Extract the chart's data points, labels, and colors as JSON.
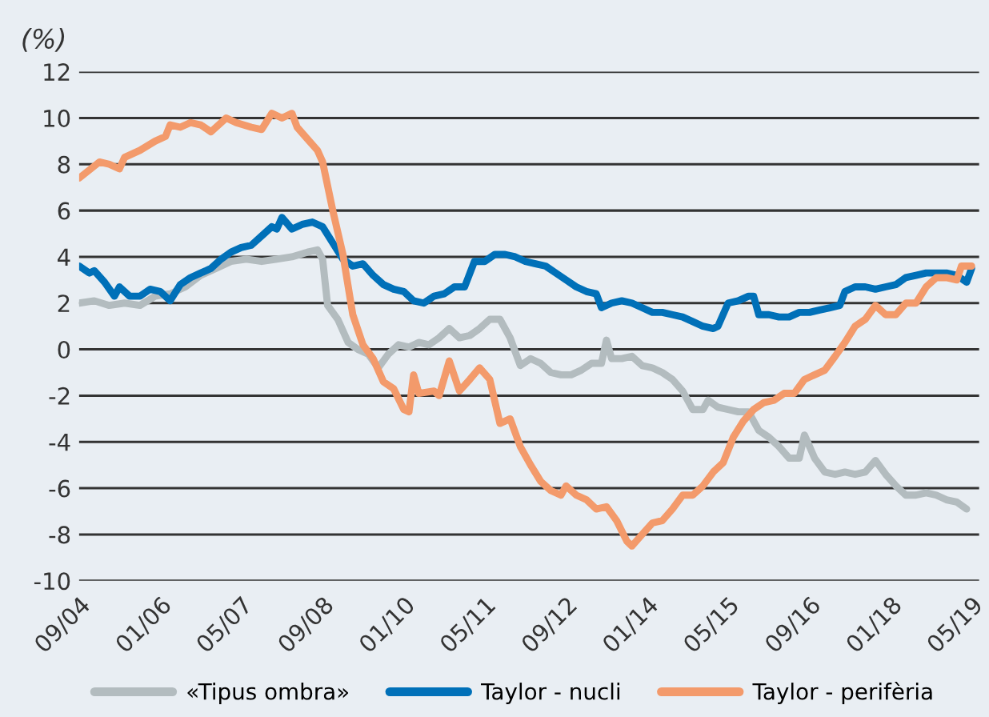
{
  "chart_data": {
    "type": "line",
    "ylabel": "(%)",
    "ylim": [
      -10,
      12
    ],
    "yticks": [
      -10,
      -8,
      -6,
      -4,
      -2,
      0,
      2,
      4,
      6,
      8,
      10,
      12
    ],
    "xlim": [
      "2004-09",
      "2019-06-15"
    ],
    "xticks": [
      {
        "value": "2004-09",
        "label": "09/04"
      },
      {
        "value": "2006-01",
        "label": "01/06"
      },
      {
        "value": "2007-05",
        "label": "05/07"
      },
      {
        "value": "2008-09",
        "label": "09/08"
      },
      {
        "value": "2010-01",
        "label": "01/10"
      },
      {
        "value": "2011-05",
        "label": "05/11"
      },
      {
        "value": "2012-09",
        "label": "09/12"
      },
      {
        "value": "2014-01",
        "label": "01/14"
      },
      {
        "value": "2015-05",
        "label": "05/15"
      },
      {
        "value": "2016-09",
        "label": "09/16"
      },
      {
        "value": "2018-01",
        "label": "01/18"
      },
      {
        "value": "2019-05",
        "label": "05/19"
      }
    ],
    "grid": "y",
    "legend": "bottom",
    "line_style": "solid",
    "marker": "none",
    "series": [
      {
        "name": "«Tipus ombra»",
        "color": "#b3bcbf",
        "x": [
          "2004-09",
          "2004-12",
          "2005-03",
          "2005-06",
          "2005-09",
          "2005-12",
          "2006-03",
          "2006-06",
          "2006-09",
          "2006-12",
          "2007-03",
          "2007-06",
          "2007-09",
          "2007-12",
          "2008-03",
          "2008-06",
          "2008-08",
          "2008-09",
          "2008-10",
          "2008-12",
          "2009-02",
          "2009-04",
          "2009-06",
          "2009-08",
          "2009-10",
          "2009-12",
          "2010-02",
          "2010-04",
          "2010-06",
          "2010-08",
          "2010-10",
          "2010-12",
          "2011-02",
          "2011-04",
          "2011-06",
          "2011-08",
          "2011-10",
          "2011-12",
          "2012-02",
          "2012-04",
          "2012-06",
          "2012-08",
          "2012-10",
          "2012-12",
          "2013-02",
          "2013-04",
          "2013-05",
          "2013-06",
          "2013-08",
          "2013-10",
          "2013-12",
          "2014-02",
          "2014-04",
          "2014-06",
          "2014-08",
          "2014-10",
          "2014-12",
          "2015-01",
          "2015-03",
          "2015-05",
          "2015-07",
          "2015-09",
          "2015-11",
          "2016-01",
          "2016-03",
          "2016-05",
          "2016-07",
          "2016-08",
          "2016-10",
          "2016-12",
          "2017-02",
          "2017-04",
          "2017-06",
          "2017-08",
          "2017-10",
          "2017-12",
          "2018-02",
          "2018-04",
          "2018-06",
          "2018-08",
          "2018-10",
          "2018-12",
          "2019-02",
          "2019-04"
        ],
        "values": [
          2.0,
          2.1,
          1.9,
          2.0,
          1.9,
          2.3,
          2.4,
          2.7,
          3.2,
          3.5,
          3.8,
          3.9,
          3.8,
          3.9,
          4.0,
          4.2,
          4.3,
          3.9,
          1.9,
          1.3,
          0.3,
          0.0,
          -0.2,
          -0.8,
          -0.2,
          0.2,
          0.1,
          0.3,
          0.2,
          0.5,
          0.9,
          0.5,
          0.6,
          0.9,
          1.3,
          1.3,
          0.5,
          -0.7,
          -0.4,
          -0.6,
          -1.0,
          -1.1,
          -1.1,
          -0.9,
          -0.6,
          -0.6,
          0.4,
          -0.4,
          -0.4,
          -0.3,
          -0.7,
          -0.8,
          -1.0,
          -1.3,
          -1.8,
          -2.6,
          -2.6,
          -2.2,
          -2.5,
          -2.6,
          -2.7,
          -2.7,
          -3.5,
          -3.8,
          -4.2,
          -4.7,
          -4.7,
          -3.7,
          -4.7,
          -5.3,
          -5.4,
          -5.3,
          -5.4,
          -5.3,
          -4.8,
          -5.4,
          -5.9,
          -6.3,
          -6.3,
          -6.2,
          -6.3,
          -6.5,
          -6.6,
          -6.9
        ]
      },
      {
        "name": "Taylor - nucli",
        "color": "#0070b8",
        "x": [
          "2004-09",
          "2004-11",
          "2004-12",
          "2005-02",
          "2005-04",
          "2005-05",
          "2005-07",
          "2005-09",
          "2005-11",
          "2006-01",
          "2006-03",
          "2006-05",
          "2006-07",
          "2006-09",
          "2006-11",
          "2007-01",
          "2007-03",
          "2007-05",
          "2007-07",
          "2007-09",
          "2007-11",
          "2007-12",
          "2008-01",
          "2008-03",
          "2008-05",
          "2008-07",
          "2008-09",
          "2008-11",
          "2009-01",
          "2009-03",
          "2009-05",
          "2009-07",
          "2009-09",
          "2009-11",
          "2010-01",
          "2010-03",
          "2010-05",
          "2010-07",
          "2010-09",
          "2010-11",
          "2011-01",
          "2011-03",
          "2011-05",
          "2011-07",
          "2011-09",
          "2011-11",
          "2012-01",
          "2012-03",
          "2012-05",
          "2012-07",
          "2012-09",
          "2012-11",
          "2013-01",
          "2013-03",
          "2013-04",
          "2013-06",
          "2013-08",
          "2013-10",
          "2013-12",
          "2014-02",
          "2014-04",
          "2014-06",
          "2014-08",
          "2014-10",
          "2014-12",
          "2015-02",
          "2015-03",
          "2015-05",
          "2015-07",
          "2015-09",
          "2015-10",
          "2015-11",
          "2016-01",
          "2016-03",
          "2016-05",
          "2016-07",
          "2016-09",
          "2016-11",
          "2017-01",
          "2017-03",
          "2017-04",
          "2017-06",
          "2017-08",
          "2017-10",
          "2017-12",
          "2018-02",
          "2018-04",
          "2018-06",
          "2018-08",
          "2018-10",
          "2018-12",
          "2019-02",
          "2019-04",
          "2019-05"
        ],
        "values": [
          3.6,
          3.3,
          3.4,
          2.9,
          2.3,
          2.7,
          2.3,
          2.3,
          2.6,
          2.5,
          2.1,
          2.8,
          3.1,
          3.3,
          3.5,
          3.9,
          4.2,
          4.4,
          4.5,
          4.9,
          5.3,
          5.2,
          5.7,
          5.2,
          5.4,
          5.5,
          5.3,
          4.6,
          3.9,
          3.6,
          3.7,
          3.2,
          2.8,
          2.6,
          2.5,
          2.1,
          2.0,
          2.3,
          2.4,
          2.7,
          2.7,
          3.8,
          3.8,
          4.1,
          4.1,
          4.0,
          3.8,
          3.7,
          3.6,
          3.3,
          3.0,
          2.7,
          2.5,
          2.4,
          1.8,
          2.0,
          2.1,
          2.0,
          1.8,
          1.6,
          1.6,
          1.5,
          1.4,
          1.2,
          1.0,
          0.9,
          1.0,
          2.0,
          2.1,
          2.3,
          2.3,
          1.5,
          1.5,
          1.4,
          1.4,
          1.6,
          1.6,
          1.7,
          1.8,
          1.9,
          2.5,
          2.7,
          2.7,
          2.6,
          2.7,
          2.8,
          3.1,
          3.2,
          3.3,
          3.3,
          3.3,
          3.2,
          2.9,
          3.5
        ]
      },
      {
        "name": "Taylor - perifèria",
        "color": "#f39a6b",
        "x": [
          "2004-09",
          "2005-01",
          "2005-03",
          "2005-05",
          "2005-06",
          "2005-09",
          "2005-12",
          "2006-02",
          "2006-03",
          "2006-05",
          "2006-07",
          "2006-09",
          "2006-11",
          "2007-01",
          "2007-02",
          "2007-04",
          "2007-07",
          "2007-09",
          "2007-11",
          "2008-01",
          "2008-03",
          "2008-04",
          "2008-06",
          "2008-08",
          "2008-09",
          "2008-11",
          "2009-01",
          "2009-03",
          "2009-05",
          "2009-07",
          "2009-09",
          "2009-11",
          "2010-01",
          "2010-02",
          "2010-03",
          "2010-04",
          "2010-07",
          "2010-08",
          "2010-10",
          "2010-12",
          "2011-02",
          "2011-04",
          "2011-06",
          "2011-08",
          "2011-10",
          "2011-12",
          "2012-02",
          "2012-04",
          "2012-06",
          "2012-08",
          "2012-09",
          "2012-11",
          "2013-01",
          "2013-03",
          "2013-05",
          "2013-07",
          "2013-09",
          "2013-10",
          "2013-12",
          "2014-02",
          "2014-04",
          "2014-06",
          "2014-08",
          "2014-10",
          "2014-12",
          "2015-02",
          "2015-04",
          "2015-06",
          "2015-08",
          "2015-10",
          "2015-12",
          "2016-02",
          "2016-04",
          "2016-06",
          "2016-08",
          "2016-10",
          "2016-12",
          "2017-02",
          "2017-04",
          "2017-06",
          "2017-08",
          "2017-10",
          "2017-12",
          "2018-02",
          "2018-04",
          "2018-06",
          "2018-08",
          "2018-10",
          "2018-12",
          "2019-02",
          "2019-03",
          "2019-05"
        ],
        "values": [
          7.4,
          8.1,
          8.0,
          7.8,
          8.3,
          8.6,
          9.0,
          9.2,
          9.7,
          9.6,
          9.8,
          9.7,
          9.4,
          9.8,
          10.0,
          9.8,
          9.6,
          9.5,
          10.2,
          10.0,
          10.2,
          9.6,
          9.1,
          8.6,
          8.1,
          6.0,
          4.1,
          1.5,
          0.2,
          -0.4,
          -1.4,
          -1.7,
          -2.6,
          -2.7,
          -1.1,
          -1.9,
          -1.8,
          -2.0,
          -0.5,
          -1.8,
          -1.3,
          -0.8,
          -1.3,
          -3.2,
          -3.0,
          -4.2,
          -5.0,
          -5.7,
          -6.1,
          -6.3,
          -5.9,
          -6.3,
          -6.5,
          -6.9,
          -6.8,
          -7.4,
          -8.3,
          -8.5,
          -8.0,
          -7.5,
          -7.4,
          -6.9,
          -6.3,
          -6.3,
          -5.9,
          -5.3,
          -4.9,
          -3.8,
          -3.1,
          -2.6,
          -2.3,
          -2.2,
          -1.9,
          -1.9,
          -1.3,
          -1.1,
          -0.9,
          -0.3,
          0.3,
          1.0,
          1.3,
          1.9,
          1.5,
          1.5,
          2.0,
          2.0,
          2.7,
          3.1,
          3.1,
          3.0,
          3.6,
          3.6
        ]
      }
    ]
  }
}
